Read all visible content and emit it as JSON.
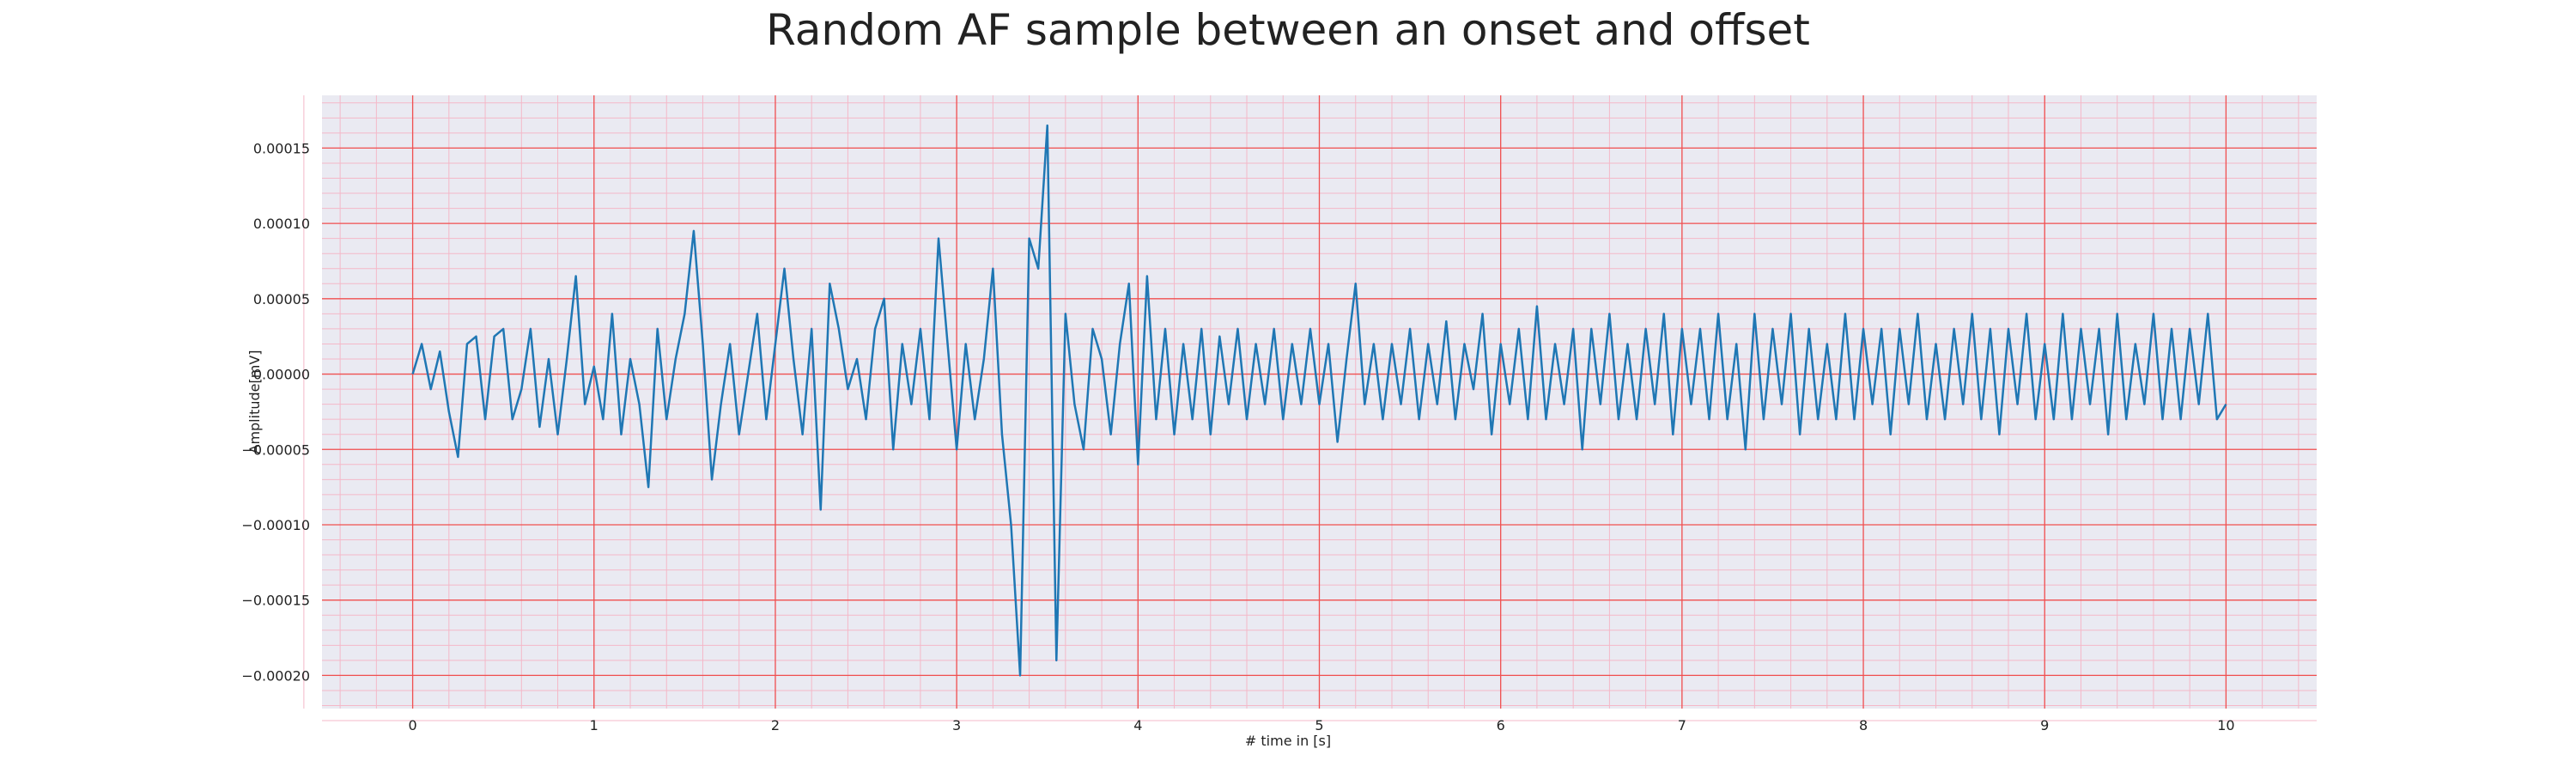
{
  "chart_data": {
    "type": "line",
    "title": "Random AF sample between an onset and offset",
    "xlabel": "# time in [s]",
    "ylabel": "Amplitude[mV]",
    "xlim": [
      -0.5,
      10.5
    ],
    "ylim": [
      -0.000222,
      0.000185
    ],
    "xticks": [
      0,
      1,
      2,
      3,
      4,
      5,
      6,
      7,
      8,
      9,
      10
    ],
    "yticks": [
      {
        "value": -0.0002,
        "label": "−0.00020"
      },
      {
        "value": -0.00015,
        "label": "−0.00015"
      },
      {
        "value": -0.0001,
        "label": "−0.00010"
      },
      {
        "value": -5e-05,
        "label": "−0.00005"
      },
      {
        "value": 0,
        "label": "0.00000"
      },
      {
        "value": 5e-05,
        "label": "0.00005"
      },
      {
        "value": 0.0001,
        "label": "0.00010"
      },
      {
        "value": 0.00015,
        "label": "0.00015"
      }
    ],
    "grid": true,
    "x": [
      0,
      0.05,
      0.1,
      0.15,
      0.2,
      0.25,
      0.3,
      0.35,
      0.4,
      0.45,
      0.5,
      0.55,
      0.6,
      0.65,
      0.7,
      0.75,
      0.8,
      0.85,
      0.9,
      0.95,
      1,
      1.05,
      1.1,
      1.15,
      1.2,
      1.25,
      1.3,
      1.35,
      1.4,
      1.45,
      1.5,
      1.55,
      1.6,
      1.65,
      1.7,
      1.75,
      1.8,
      1.85,
      1.9,
      1.95,
      2,
      2.05,
      2.1,
      2.15,
      2.2,
      2.25,
      2.3,
      2.35,
      2.4,
      2.45,
      2.5,
      2.55,
      2.6,
      2.65,
      2.7,
      2.75,
      2.8,
      2.85,
      2.9,
      2.95,
      3,
      3.05,
      3.1,
      3.15,
      3.2,
      3.25,
      3.3,
      3.35,
      3.4,
      3.45,
      3.5,
      3.55,
      3.6,
      3.65,
      3.7,
      3.75,
      3.8,
      3.85,
      3.9,
      3.95,
      4,
      4.05,
      4.1,
      4.15,
      4.2,
      4.25,
      4.3,
      4.35,
      4.4,
      4.45,
      4.5,
      4.55,
      4.6,
      4.65,
      4.7,
      4.75,
      4.8,
      4.85,
      4.9,
      4.95,
      5,
      5.05,
      5.1,
      5.15,
      5.2,
      5.25,
      5.3,
      5.35,
      5.4,
      5.45,
      5.5,
      5.55,
      5.6,
      5.65,
      5.7,
      5.75,
      5.8,
      5.85,
      5.9,
      5.95,
      6,
      6.05,
      6.1,
      6.15,
      6.2,
      6.25,
      6.3,
      6.35,
      6.4,
      6.45,
      6.5,
      6.55,
      6.6,
      6.65,
      6.7,
      6.75,
      6.8,
      6.85,
      6.9,
      6.95,
      7,
      7.05,
      7.1,
      7.15,
      7.2,
      7.25,
      7.3,
      7.35,
      7.4,
      7.45,
      7.5,
      7.55,
      7.6,
      7.65,
      7.7,
      7.75,
      7.8,
      7.85,
      7.9,
      7.95,
      8,
      8.05,
      8.1,
      8.15,
      8.2,
      8.25,
      8.3,
      8.35,
      8.4,
      8.45,
      8.5,
      8.55,
      8.6,
      8.65,
      8.7,
      8.75,
      8.8,
      8.85,
      8.9,
      8.95,
      9,
      9.05,
      9.1,
      9.15,
      9.2,
      9.25,
      9.3,
      9.35,
      9.4,
      9.45,
      9.5,
      9.55,
      9.6,
      9.65,
      9.7,
      9.75,
      9.8,
      9.85,
      9.9,
      9.95,
      10
    ],
    "series": [
      {
        "color": "#1f77b4",
        "values": [
          0,
          2e-05,
          -1e-05,
          1.5e-05,
          -2.5e-05,
          -5.5e-05,
          2e-05,
          2.5e-05,
          -3e-05,
          2.5e-05,
          3e-05,
          -3e-05,
          -1e-05,
          3e-05,
          -3.5e-05,
          1e-05,
          -4e-05,
          1e-05,
          6.5e-05,
          -2e-05,
          5e-06,
          -3e-05,
          4e-05,
          -4e-05,
          1e-05,
          -2e-05,
          -7.5e-05,
          3e-05,
          -3e-05,
          1e-05,
          4e-05,
          9.5e-05,
          2e-05,
          -7e-05,
          -2e-05,
          2e-05,
          -4e-05,
          0,
          4e-05,
          -3e-05,
          2e-05,
          7e-05,
          1e-05,
          -4e-05,
          3e-05,
          -9e-05,
          6e-05,
          3e-05,
          -1e-05,
          1e-05,
          -3e-05,
          3e-05,
          5e-05,
          -5e-05,
          2e-05,
          -2e-05,
          3e-05,
          -3e-05,
          9e-05,
          2e-05,
          -5e-05,
          2e-05,
          -3e-05,
          1e-05,
          7e-05,
          -4e-05,
          -0.0001,
          -0.0002,
          9e-05,
          7e-05,
          0.000165,
          -0.00019,
          4e-05,
          -2e-05,
          -5e-05,
          3e-05,
          1e-05,
          -4e-05,
          2e-05,
          6e-05,
          -6e-05,
          6.5e-05,
          -3e-05,
          3e-05,
          -4e-05,
          2e-05,
          -3e-05,
          3e-05,
          -4e-05,
          2.5e-05,
          -2e-05,
          3e-05,
          -3e-05,
          2e-05,
          -2e-05,
          3e-05,
          -3e-05,
          2e-05,
          -2e-05,
          3e-05,
          -2e-05,
          2e-05,
          -4.5e-05,
          1e-05,
          6e-05,
          -2e-05,
          2e-05,
          -3e-05,
          2e-05,
          -2e-05,
          3e-05,
          -3e-05,
          2e-05,
          -2e-05,
          3.5e-05,
          -3e-05,
          2e-05,
          -1e-05,
          4e-05,
          -4e-05,
          2e-05,
          -2e-05,
          3e-05,
          -3e-05,
          4.5e-05,
          -3e-05,
          2e-05,
          -2e-05,
          3e-05,
          -5e-05,
          3e-05,
          -2e-05,
          4e-05,
          -3e-05,
          2e-05,
          -3e-05,
          3e-05,
          -2e-05,
          4e-05,
          -4e-05,
          3e-05,
          -2e-05,
          3e-05,
          -3e-05,
          4e-05,
          -3e-05,
          2e-05,
          -5e-05,
          4e-05,
          -3e-05,
          3e-05,
          -2e-05,
          4e-05,
          -4e-05,
          3e-05,
          -3e-05,
          2e-05,
          -3e-05,
          4e-05,
          -3e-05,
          3e-05,
          -2e-05,
          3e-05,
          -4e-05,
          3e-05,
          -2e-05,
          4e-05,
          -3e-05,
          2e-05,
          -3e-05,
          3e-05,
          -2e-05,
          4e-05,
          -3e-05,
          3e-05,
          -4e-05,
          3e-05,
          -2e-05,
          4e-05,
          -3e-05,
          2e-05,
          -3e-05,
          4e-05,
          -3e-05,
          3e-05,
          -2e-05,
          3e-05,
          -4e-05,
          4e-05,
          -3e-05,
          2e-05,
          -2e-05,
          4e-05,
          -3e-05,
          3e-05,
          -3e-05,
          3e-05,
          -2e-05,
          4e-05,
          -3e-05,
          -2e-05
        ]
      }
    ]
  }
}
